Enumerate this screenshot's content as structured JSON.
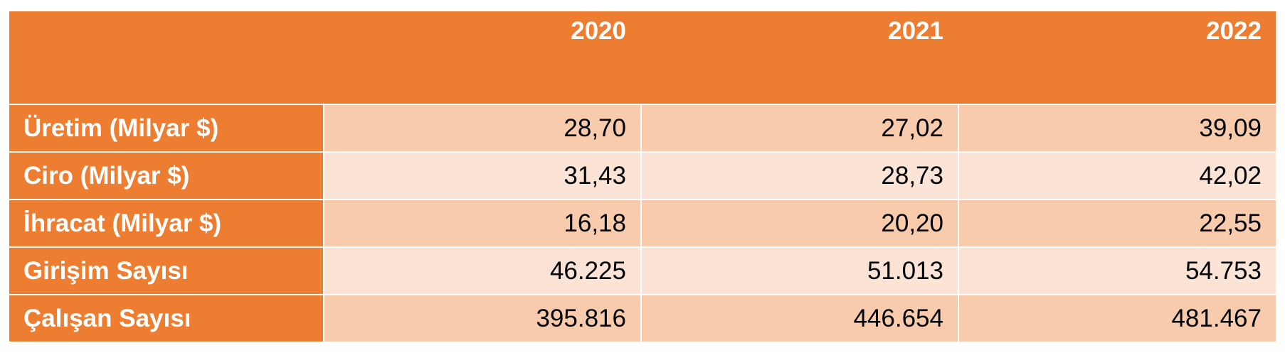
{
  "colors": {
    "header_bg": "#ed7d31",
    "header_text": "#ffffff",
    "band_dark": "#f8cbad",
    "band_light": "#fbe4d5",
    "value_text": "#000000"
  },
  "chart_data": {
    "type": "table",
    "columns": [
      "2020",
      "2021",
      "2022"
    ],
    "rows": [
      {
        "label": "Üretim (Milyar $)",
        "values": [
          "28,70",
          "27,02",
          "39,09"
        ]
      },
      {
        "label": "Ciro (Milyar $)",
        "values": [
          "31,43",
          "28,73",
          "42,02"
        ]
      },
      {
        "label": "İhracat (Milyar $)",
        "values": [
          "16,18",
          "20,20",
          "22,55"
        ]
      },
      {
        "label": "Girişim Sayısı",
        "values": [
          "46.225",
          "51.013",
          "54.753"
        ]
      },
      {
        "label": "Çalışan Sayısı",
        "values": [
          "395.816",
          "446.654",
          "481.467"
        ]
      }
    ]
  }
}
